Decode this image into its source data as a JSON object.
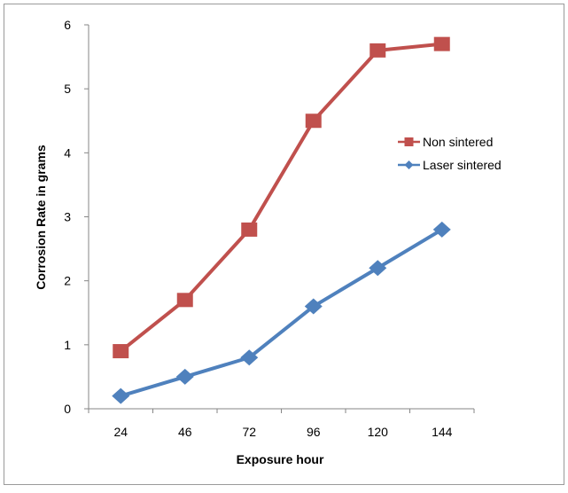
{
  "chart_data": {
    "type": "line",
    "xlabel": "Exposure hour",
    "ylabel": "Corrosion Rate in grams",
    "categories": [
      "24",
      "46",
      "72",
      "96",
      "120",
      "144"
    ],
    "ylim": [
      0,
      6
    ],
    "yticks": [
      "0",
      "1",
      "2",
      "3",
      "4",
      "5",
      "6"
    ],
    "grid": false,
    "legend_position": "right",
    "series": [
      {
        "name": "Non sintered",
        "values": [
          0.9,
          1.7,
          2.8,
          4.5,
          5.6,
          5.7
        ],
        "color": "#c0504d",
        "marker": "square"
      },
      {
        "name": "Laser sintered",
        "values": [
          0.2,
          0.5,
          0.8,
          1.6,
          2.2,
          2.8
        ],
        "color": "#4f81bd",
        "marker": "diamond"
      }
    ]
  }
}
